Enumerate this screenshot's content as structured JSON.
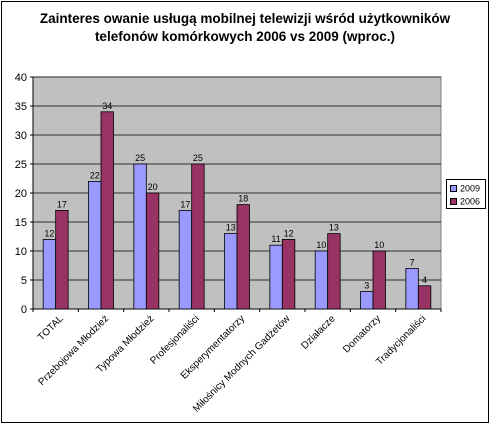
{
  "chart_data": {
    "type": "bar",
    "title": "Zainteres owanie usługą mobilnej telewizji wśród użytkowników telefonów komórkowych 2006 vs 2009 (wproc.)",
    "title_lines": [
      "Zainteres owanie usługą mobilnej telewizji wśród użytkowników",
      "telefonów komórkowych 2006 vs 2009 (wproc.)"
    ],
    "categories": [
      "TOTAL",
      "Przebojowa Młodzież",
      "Typowa Młodzież",
      "Profesjonaliści",
      "Eksperymentatorzy",
      "Miłośnicy Modnych Gadżetów",
      "Działacze",
      "Domatorzy",
      "Tradycjonaliści"
    ],
    "series": [
      {
        "name": "2009",
        "values": [
          12,
          22,
          25,
          17,
          13,
          11,
          10,
          3,
          7
        ],
        "color": "#9999ff"
      },
      {
        "name": "2006",
        "values": [
          17,
          34,
          20,
          25,
          18,
          12,
          13,
          10,
          4
        ],
        "color": "#993366"
      }
    ],
    "yticks": [
      "0",
      "5",
      "10",
      "15",
      "20",
      "25",
      "30",
      "35",
      "40"
    ],
    "ylim": [
      0,
      40
    ],
    "grid": true,
    "plot_background": "#c0c0c0",
    "legend_position": "right"
  }
}
